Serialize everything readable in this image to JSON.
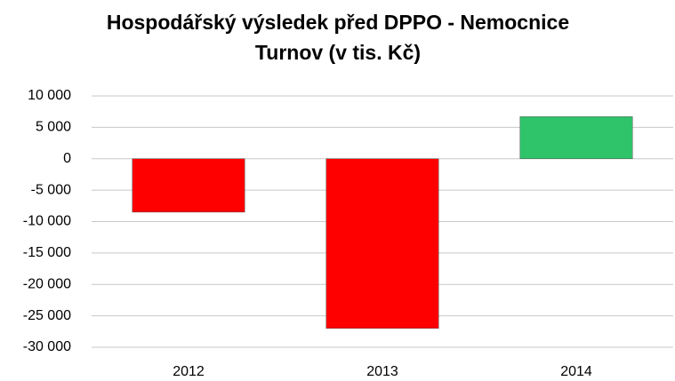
{
  "chart_data": {
    "type": "bar",
    "title": "Hospodářský výsledek před DPPO - Nemocnice Turnov (v tis. Kč)",
    "categories": [
      "2012",
      "2013",
      "2014"
    ],
    "values": [
      -8500,
      -27000,
      6700
    ],
    "colors": [
      "#ff0000",
      "#ff0000",
      "#2fc46a"
    ],
    "ylim": [
      -30000,
      10000
    ],
    "yticks": [
      {
        "value": -30000,
        "label": "-30 000"
      },
      {
        "value": -25000,
        "label": "-25 000"
      },
      {
        "value": -20000,
        "label": "-20 000"
      },
      {
        "value": -15000,
        "label": "-15 000"
      },
      {
        "value": -10000,
        "label": "-10 000"
      },
      {
        "value": -5000,
        "label": "-5 000"
      },
      0,
      {
        "value": 5000,
        "label": "5 000"
      },
      {
        "value": 10000,
        "label": "10 000"
      }
    ],
    "grid": true
  }
}
